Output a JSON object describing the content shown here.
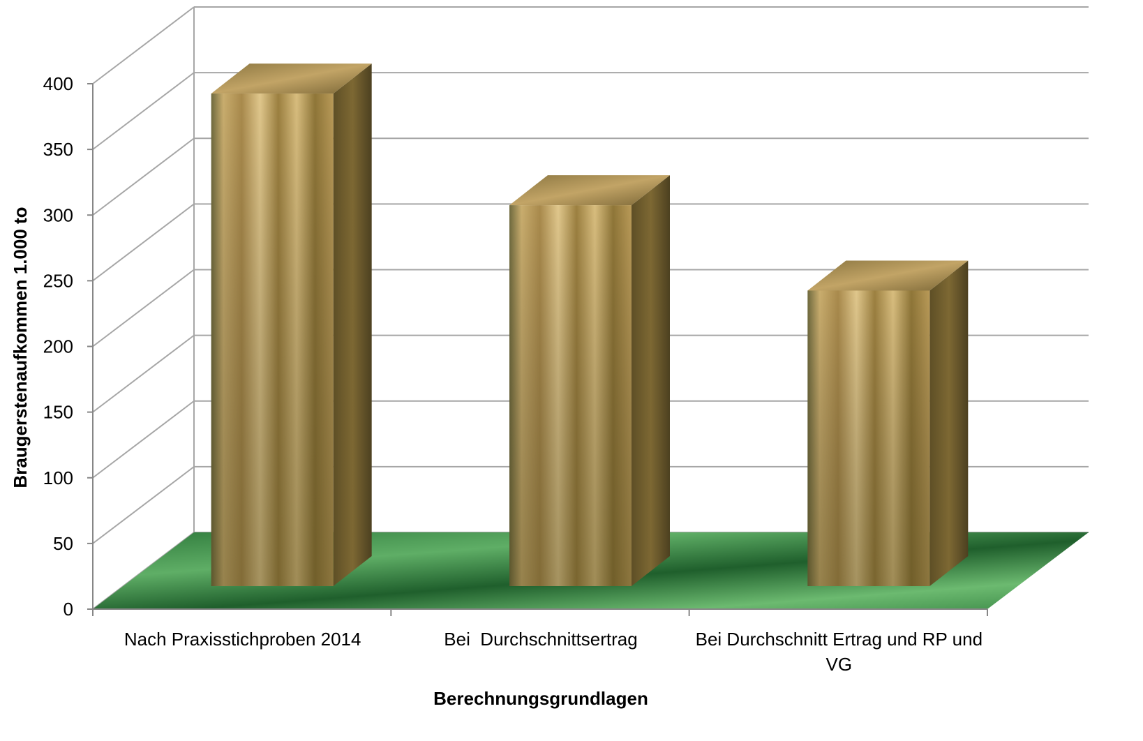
{
  "chart_data": {
    "type": "bar3d",
    "x_axis_label": "Berechnungsgrundlagen",
    "y_axis_label": "Braugerstenaufkommen 1.000 to",
    "categories": [
      "Nach Praxisstichproben 2014",
      "Bei  Durchschnittsertrag",
      "Bei Durchschnitt Ertrag und RP und VG"
    ],
    "values": [
      375,
      290,
      225
    ],
    "ylim": [
      0,
      400
    ],
    "yticks": [
      0,
      50,
      100,
      150,
      200,
      250,
      300,
      350,
      400
    ],
    "grid": true
  }
}
